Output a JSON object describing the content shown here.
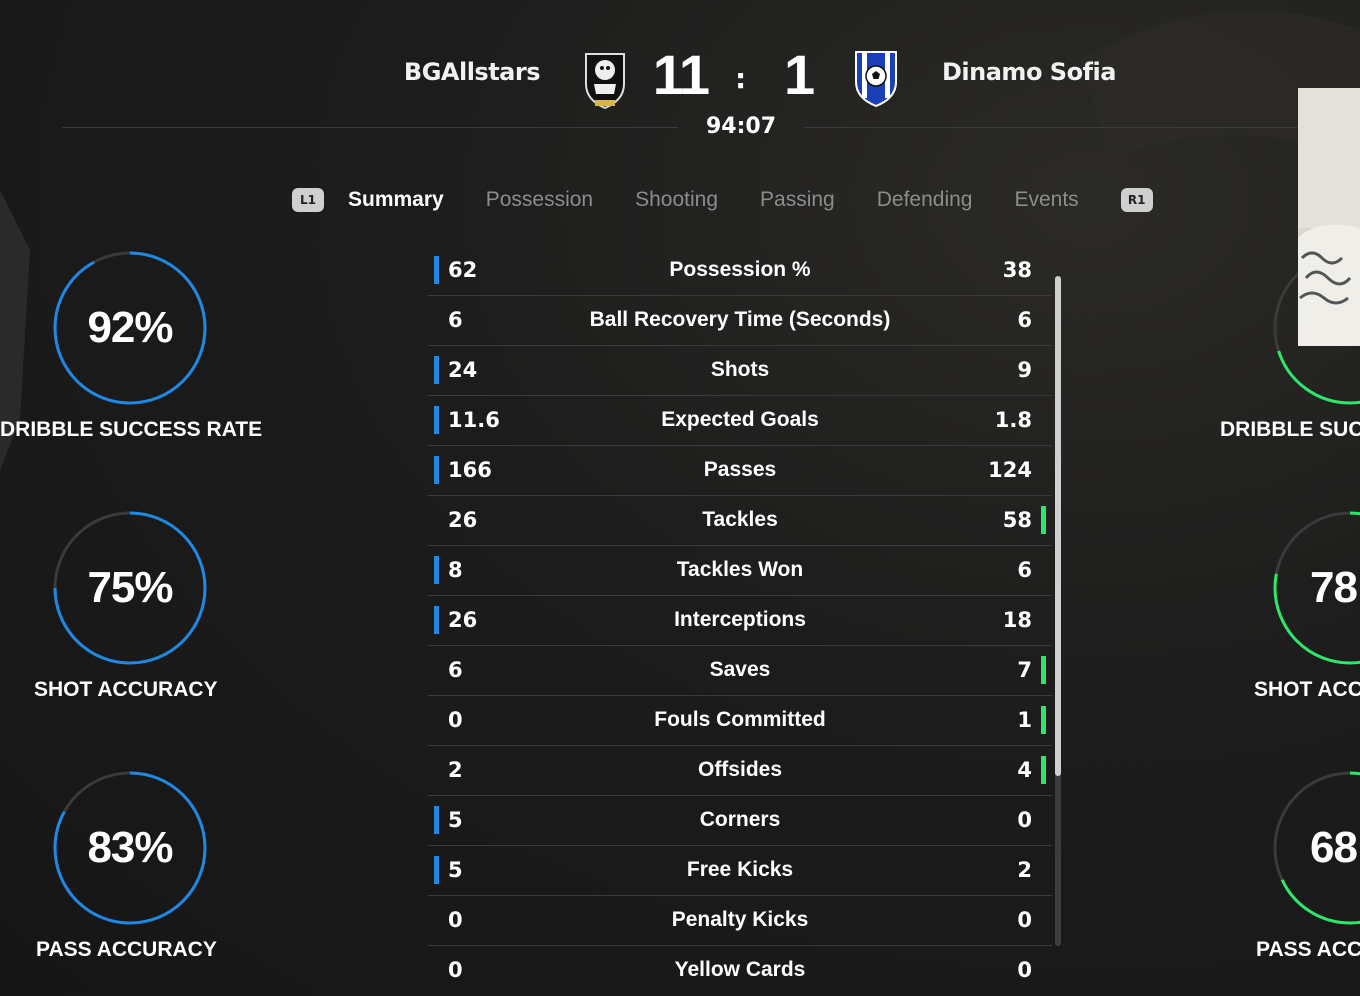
{
  "match": {
    "home_team": "BGAllstars",
    "away_team": "Dinamo Sofia",
    "home_score": "11",
    "separator": ":",
    "away_score": "1",
    "clock": "94:07"
  },
  "tabs": {
    "left_button": "L1",
    "right_button": "R1",
    "items": [
      "Summary",
      "Possession",
      "Shooting",
      "Passing",
      "Defending",
      "Events"
    ],
    "active": "Summary"
  },
  "home_gauges": [
    {
      "value": "92%",
      "label": "DRIBBLE SUCCESS RATE",
      "percent": 92
    },
    {
      "value": "75%",
      "label": "SHOT ACCURACY",
      "percent": 75
    },
    {
      "value": "83%",
      "label": "PASS ACCURACY",
      "percent": 83
    }
  ],
  "away_gauges": [
    {
      "value": "",
      "label": "DRIBBLE SUC",
      "percent": 70
    },
    {
      "value": "78",
      "label": "SHOT ACC",
      "percent": 78
    },
    {
      "value": "68",
      "label": "PASS ACC",
      "percent": 68
    }
  ],
  "stats": [
    {
      "home": "62",
      "label": "Possession %",
      "away": "38",
      "leader": "home"
    },
    {
      "home": "6",
      "label": "Ball Recovery Time (Seconds)",
      "away": "6",
      "leader": "none"
    },
    {
      "home": "24",
      "label": "Shots",
      "away": "9",
      "leader": "home"
    },
    {
      "home": "11.6",
      "label": "Expected Goals",
      "away": "1.8",
      "leader": "home"
    },
    {
      "home": "166",
      "label": "Passes",
      "away": "124",
      "leader": "home"
    },
    {
      "home": "26",
      "label": "Tackles",
      "away": "58",
      "leader": "away"
    },
    {
      "home": "8",
      "label": "Tackles Won",
      "away": "6",
      "leader": "home"
    },
    {
      "home": "26",
      "label": "Interceptions",
      "away": "18",
      "leader": "home"
    },
    {
      "home": "6",
      "label": "Saves",
      "away": "7",
      "leader": "away"
    },
    {
      "home": "0",
      "label": "Fouls Committed",
      "away": "1",
      "leader": "away"
    },
    {
      "home": "2",
      "label": "Offsides",
      "away": "4",
      "leader": "away"
    },
    {
      "home": "5",
      "label": "Corners",
      "away": "0",
      "leader": "home"
    },
    {
      "home": "5",
      "label": "Free Kicks",
      "away": "2",
      "leader": "home"
    },
    {
      "home": "0",
      "label": "Penalty Kicks",
      "away": "0",
      "leader": "none"
    },
    {
      "home": "0",
      "label": "Yellow Cards",
      "away": "0",
      "leader": "none"
    }
  ],
  "colors": {
    "home_accent": "#1e88e5",
    "away_accent": "#2ee66a"
  },
  "icons": {
    "home_crest": "bear-crest-icon",
    "away_crest": "soccer-ball-shield-icon"
  }
}
